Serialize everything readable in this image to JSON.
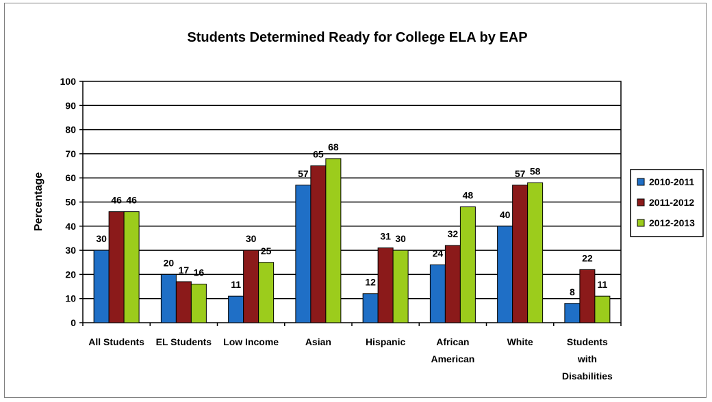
{
  "chart_data": {
    "type": "bar",
    "title": "Students Determined Ready for College ELA by EAP",
    "xlabel": "",
    "ylabel": "Percentage",
    "ylim": [
      0,
      100
    ],
    "yticks": [
      0,
      10,
      20,
      30,
      40,
      50,
      60,
      70,
      80,
      90,
      100
    ],
    "grid": true,
    "legend_position": "right",
    "categories": [
      [
        "All Students"
      ],
      [
        "EL Students"
      ],
      [
        "Low Income"
      ],
      [
        "Asian"
      ],
      [
        "Hispanic"
      ],
      [
        "African",
        "American"
      ],
      [
        "White"
      ],
      [
        "Students",
        "with",
        "Disabilities"
      ]
    ],
    "series": [
      {
        "name": "2010-2011",
        "color": "#1f6fc6",
        "values": [
          30,
          20,
          11,
          57,
          12,
          24,
          40,
          8
        ]
      },
      {
        "name": "2011-2012",
        "color": "#8b1a1a",
        "values": [
          46,
          17,
          30,
          65,
          31,
          32,
          57,
          22
        ]
      },
      {
        "name": "2012-2013",
        "color": "#9ccc1c",
        "values": [
          46,
          16,
          25,
          68,
          30,
          48,
          58,
          11
        ]
      }
    ]
  }
}
